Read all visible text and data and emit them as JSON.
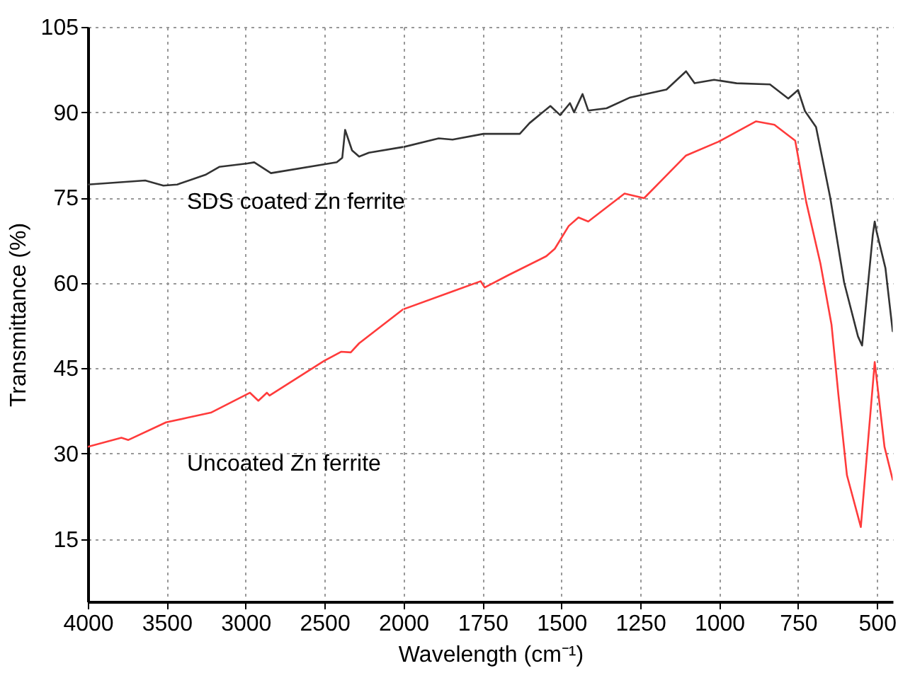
{
  "chart_data": [
    {
      "type": "line",
      "ylabel": "Transmittance (%)",
      "xlim": [
        4000,
        2000
      ],
      "xticks": [
        4000,
        3500,
        3000,
        2500,
        2000
      ],
      "ylim": [
        4,
        105
      ],
      "yticks": [
        15,
        30,
        45,
        60,
        75,
        90,
        105
      ],
      "grid": true,
      "series": [
        {
          "name": "SDS coated Zn ferrite",
          "color": "#333333",
          "x": [
            4000,
            3636,
            3521,
            3433,
            3255,
            3167,
            2990,
            2945,
            2839,
            2422,
            2387,
            2369,
            2325,
            2280,
            2218,
            2000
          ],
          "values": [
            77.3,
            78.0,
            77.1,
            77.3,
            79.0,
            80.4,
            81.0,
            81.2,
            79.3,
            81.2,
            82.0,
            86.9,
            83.3,
            82.2,
            82.9,
            83.9
          ]
        },
        {
          "name": "Uncoated Zn ferrite",
          "color": "#ff3b3b",
          "x": [
            4000,
            3787,
            3743,
            3504,
            3370,
            3220,
            2972,
            2919,
            2865,
            2848,
            2502,
            2395,
            2333,
            2280,
            2000
          ],
          "values": [
            31.2,
            32.8,
            32.4,
            35.5,
            36.3,
            37.2,
            40.7,
            39.3,
            40.7,
            40.2,
            46.3,
            47.9,
            47.8,
            49.4,
            55.4
          ]
        }
      ]
    },
    {
      "type": "line",
      "xlabel": "Wavelength (cm⁻¹)",
      "xlim": [
        2000,
        450
      ],
      "xticks": [
        1750,
        1500,
        1250,
        1000,
        750,
        500
      ],
      "ylim": [
        4,
        105
      ],
      "grid": true,
      "tick_labels": "x",
      "series": [
        {
          "color": "#333333",
          "x": [
            2000,
            1889,
            1845,
            1747,
            1632,
            1601,
            1535,
            1504,
            1473,
            1460,
            1433,
            1415,
            1357,
            1282,
            1167,
            1105,
            1078,
            1016,
            945,
            839,
            781,
            750,
            728,
            693,
            648,
            604,
            560,
            547,
            513,
            507,
            501,
            473,
            450
          ],
          "values": [
            83.9,
            85.4,
            85.2,
            86.2,
            86.2,
            88.1,
            91.1,
            89.5,
            91.6,
            90.0,
            93.2,
            90.3,
            90.7,
            92.6,
            94.0,
            97.2,
            95.1,
            95.7,
            95.1,
            94.9,
            92.4,
            93.9,
            90.2,
            87.4,
            75.0,
            60.1,
            50.6,
            49.0,
            68.5,
            70.8,
            69.0,
            62.6,
            51.5
          ]
        },
        {
          "color": "#ff3b3b",
          "x": [
            2000,
            1845,
            1756,
            1743,
            1667,
            1548,
            1521,
            1477,
            1446,
            1415,
            1300,
            1238,
            1105,
            1003,
            883,
            825,
            759,
            724,
            679,
            644,
            622,
            595,
            551,
            507,
            476,
            450
          ],
          "values": [
            55.4,
            58.5,
            60.3,
            59.2,
            61.4,
            64.7,
            66.0,
            70.0,
            71.5,
            70.8,
            75.7,
            74.9,
            82.4,
            84.8,
            88.4,
            87.8,
            85.0,
            74.2,
            63.4,
            52.7,
            40.3,
            26.2,
            17.1,
            46.1,
            31.2,
            25.4
          ]
        }
      ]
    }
  ]
}
